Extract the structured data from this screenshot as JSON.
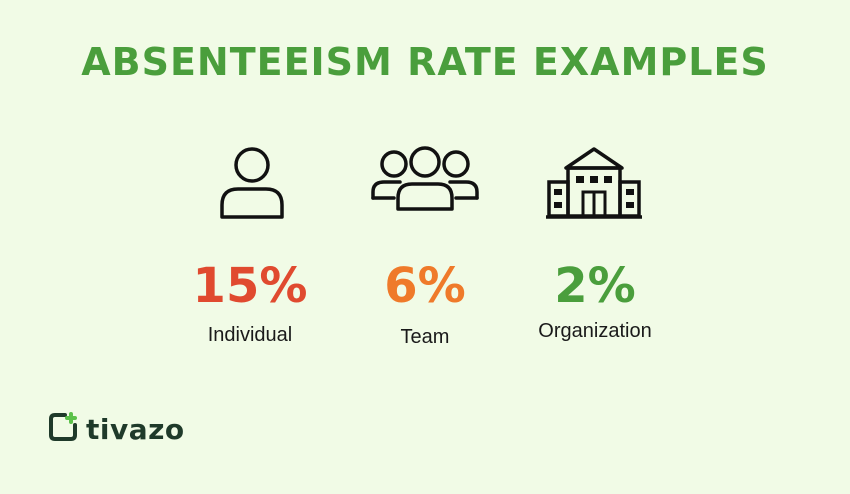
{
  "title": "ABSENTEEISM RATE EXAMPLES",
  "items": [
    {
      "icon": "person-icon",
      "value": "15%",
      "label": "Individual",
      "color": "#e04a2f"
    },
    {
      "icon": "group-icon",
      "value": "6%",
      "label": "Team",
      "color": "#ef7a2a"
    },
    {
      "icon": "building-icon",
      "value": "2%",
      "label": "Organization",
      "color": "#4a9e3c"
    }
  ],
  "brand": {
    "name": "tivazo",
    "accent": "#5cc24a",
    "text_color": "#1f3a2a"
  },
  "colors": {
    "background": "#f1fbe6",
    "title": "#4a9e3c"
  }
}
